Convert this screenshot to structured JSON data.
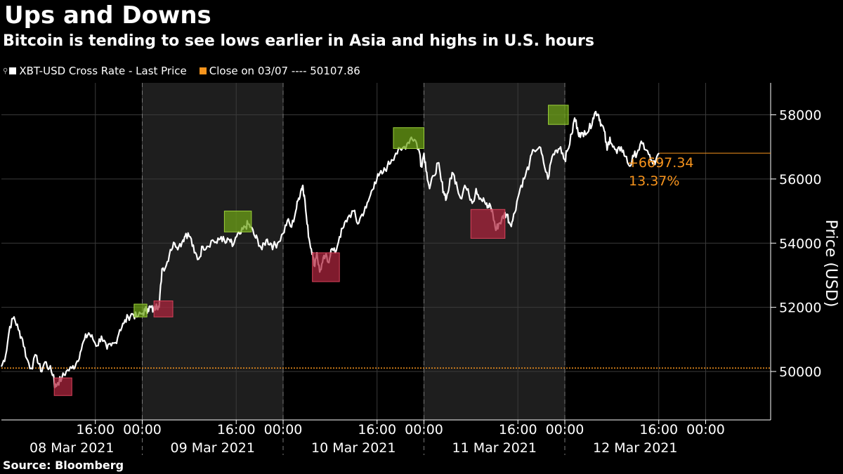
{
  "header": {
    "title": "Ups and Downs",
    "subtitle": "Bitcoin is tending to see lows earlier in Asia and highs in U.S. hours"
  },
  "legend": [
    {
      "label": "XBT-USD Cross Rate - Last Price",
      "color": "#ffffff"
    },
    {
      "label": "Close on 03/07 ---- 50107.86",
      "color": "#f7941d"
    }
  ],
  "footer": {
    "source": "Source: Bloomberg"
  },
  "colors": {
    "line": "#ffffff",
    "reference": "#f7941d",
    "shade": "#1e1e1e",
    "grid": "#3a3a3a",
    "low_box": "#b0263e",
    "high_box": "#6fa516"
  },
  "chart_data": {
    "type": "line",
    "title": "Ups and Downs",
    "subtitle": "Bitcoin is tending to see lows earlier in Asia and highs in U.S. hours",
    "ylabel": "Price (USD)",
    "ylim": [
      48800,
      58900
    ],
    "y_ticks": [
      50000,
      52000,
      54000,
      56000,
      58000
    ],
    "y_tick_labels": [
      "50000",
      "52000",
      "54000",
      "56000",
      "58000"
    ],
    "x_range_days": [
      8.0,
      13.0
    ],
    "x_day_labels": [
      "08 Mar 2021",
      "09 Mar 2021",
      "10 Mar 2021",
      "11 Mar 2021",
      "12 Mar 2021"
    ],
    "x_time_ticks": [
      {
        "day": 8.667,
        "label": "16:00"
      },
      {
        "day": 9.0,
        "label": "00:00"
      },
      {
        "day": 9.667,
        "label": "16:00"
      },
      {
        "day": 10.0,
        "label": "00:00"
      },
      {
        "day": 10.667,
        "label": "16:00"
      },
      {
        "day": 11.0,
        "label": "00:00"
      },
      {
        "day": 11.667,
        "label": "16:00"
      },
      {
        "day": 12.0,
        "label": "00:00"
      },
      {
        "day": 12.667,
        "label": "16:00"
      },
      {
        "day": 13.0,
        "label": "00:00"
      }
    ],
    "shaded_days": [
      9,
      11
    ],
    "reference_line": {
      "label": "Close on 03/07",
      "value": 50107.86
    },
    "last_change": {
      "absolute": "+6697.34",
      "percent": "13.37%",
      "value": 56805.2
    },
    "series": [
      {
        "name": "XBT-USD Cross Rate - Last Price",
        "points": [
          [
            8.0,
            50150
          ],
          [
            8.03,
            50500
          ],
          [
            8.06,
            51400
          ],
          [
            8.09,
            51700
          ],
          [
            8.12,
            51300
          ],
          [
            8.15,
            51000
          ],
          [
            8.18,
            50400
          ],
          [
            8.21,
            50100
          ],
          [
            8.25,
            50500
          ],
          [
            8.28,
            50000
          ],
          [
            8.31,
            50300
          ],
          [
            8.34,
            50100
          ],
          [
            8.37,
            49900
          ],
          [
            8.38,
            49500
          ],
          [
            8.4,
            49650
          ],
          [
            8.43,
            49800
          ],
          [
            8.46,
            50000
          ],
          [
            8.5,
            50100
          ],
          [
            8.53,
            50250
          ],
          [
            8.56,
            50600
          ],
          [
            8.59,
            51000
          ],
          [
            8.62,
            51200
          ],
          [
            8.65,
            51000
          ],
          [
            8.68,
            50800
          ],
          [
            8.71,
            51100
          ],
          [
            8.75,
            50700
          ],
          [
            8.78,
            50800
          ],
          [
            8.81,
            50900
          ],
          [
            8.84,
            51300
          ],
          [
            8.87,
            51500
          ],
          [
            8.9,
            51700
          ],
          [
            8.93,
            51800
          ],
          [
            8.96,
            51700
          ],
          [
            9.0,
            51800
          ],
          [
            9.02,
            51900
          ],
          [
            9.04,
            51950
          ],
          [
            9.06,
            52000
          ],
          [
            9.08,
            51900
          ],
          [
            9.1,
            52100
          ],
          [
            9.12,
            52000
          ],
          [
            9.14,
            53200
          ],
          [
            9.17,
            53300
          ],
          [
            9.2,
            53800
          ],
          [
            9.23,
            54000
          ],
          [
            9.26,
            53900
          ],
          [
            9.29,
            54100
          ],
          [
            9.31,
            54300
          ],
          [
            9.34,
            54200
          ],
          [
            9.37,
            53700
          ],
          [
            9.4,
            53500
          ],
          [
            9.43,
            53900
          ],
          [
            9.46,
            53900
          ],
          [
            9.5,
            54100
          ],
          [
            9.53,
            54000
          ],
          [
            9.56,
            54200
          ],
          [
            9.59,
            54000
          ],
          [
            9.62,
            54100
          ],
          [
            9.64,
            53900
          ],
          [
            9.67,
            54200
          ],
          [
            9.7,
            54300
          ],
          [
            9.73,
            54500
          ],
          [
            9.75,
            54600
          ],
          [
            9.77,
            54500
          ],
          [
            9.8,
            54200
          ],
          [
            9.82,
            54100
          ],
          [
            9.85,
            53800
          ],
          [
            9.88,
            54100
          ],
          [
            9.91,
            54000
          ],
          [
            9.93,
            53900
          ],
          [
            9.96,
            54000
          ],
          [
            10.0,
            54300
          ],
          [
            10.03,
            54700
          ],
          [
            10.06,
            54500
          ],
          [
            10.09,
            55000
          ],
          [
            10.11,
            55400
          ],
          [
            10.13,
            55700
          ],
          [
            10.14,
            55800
          ],
          [
            10.15,
            55500
          ],
          [
            10.17,
            54600
          ],
          [
            10.19,
            54000
          ],
          [
            10.21,
            53700
          ],
          [
            10.22,
            53300
          ],
          [
            10.24,
            53700
          ],
          [
            10.26,
            53100
          ],
          [
            10.28,
            53400
          ],
          [
            10.3,
            53600
          ],
          [
            10.32,
            53400
          ],
          [
            10.34,
            53800
          ],
          [
            10.37,
            53700
          ],
          [
            10.4,
            54200
          ],
          [
            10.43,
            54500
          ],
          [
            10.46,
            54800
          ],
          [
            10.5,
            55000
          ],
          [
            10.53,
            54600
          ],
          [
            10.56,
            54900
          ],
          [
            10.59,
            55100
          ],
          [
            10.62,
            55500
          ],
          [
            10.65,
            55900
          ],
          [
            10.68,
            56100
          ],
          [
            10.71,
            56200
          ],
          [
            10.74,
            56400
          ],
          [
            10.77,
            56600
          ],
          [
            10.8,
            56800
          ],
          [
            10.84,
            56900
          ],
          [
            10.88,
            57100
          ],
          [
            10.91,
            57300
          ],
          [
            10.94,
            57200
          ],
          [
            10.97,
            56800
          ],
          [
            10.98,
            56400
          ],
          [
            11.0,
            56800
          ],
          [
            11.02,
            56200
          ],
          [
            11.04,
            55700
          ],
          [
            11.07,
            56100
          ],
          [
            11.1,
            56500
          ],
          [
            11.12,
            56000
          ],
          [
            11.14,
            55600
          ],
          [
            11.16,
            55400
          ],
          [
            11.18,
            55800
          ],
          [
            11.2,
            56200
          ],
          [
            11.23,
            55900
          ],
          [
            11.26,
            55400
          ],
          [
            11.29,
            55800
          ],
          [
            11.32,
            55500
          ],
          [
            11.35,
            55300
          ],
          [
            11.37,
            55700
          ],
          [
            11.4,
            55400
          ],
          [
            11.43,
            55300
          ],
          [
            11.45,
            55100
          ],
          [
            11.47,
            55200
          ],
          [
            11.49,
            54900
          ],
          [
            11.51,
            54400
          ],
          [
            11.53,
            54600
          ],
          [
            11.55,
            54700
          ],
          [
            11.57,
            54900
          ],
          [
            11.59,
            54900
          ],
          [
            11.61,
            54600
          ],
          [
            11.63,
            54700
          ],
          [
            11.66,
            55300
          ],
          [
            11.69,
            55800
          ],
          [
            11.72,
            56100
          ],
          [
            11.75,
            56500
          ],
          [
            11.78,
            56900
          ],
          [
            11.82,
            57000
          ],
          [
            11.85,
            56500
          ],
          [
            11.88,
            56000
          ],
          [
            11.91,
            56700
          ],
          [
            11.94,
            56900
          ],
          [
            11.97,
            57000
          ],
          [
            12.0,
            56600
          ],
          [
            12.02,
            56900
          ],
          [
            12.05,
            57400
          ],
          [
            12.07,
            57900
          ],
          [
            12.09,
            57600
          ],
          [
            12.11,
            57300
          ],
          [
            12.14,
            57500
          ],
          [
            12.17,
            57500
          ],
          [
            12.2,
            57900
          ],
          [
            12.22,
            58100
          ],
          [
            12.24,
            58000
          ],
          [
            12.26,
            57700
          ],
          [
            12.28,
            57500
          ],
          [
            12.3,
            56900
          ],
          [
            12.32,
            57300
          ],
          [
            12.34,
            57000
          ],
          [
            12.37,
            56800
          ],
          [
            12.4,
            57000
          ],
          [
            12.43,
            56700
          ],
          [
            12.46,
            56400
          ],
          [
            12.49,
            56700
          ],
          [
            12.52,
            56900
          ],
          [
            12.55,
            57100
          ],
          [
            12.58,
            56900
          ],
          [
            12.61,
            56600
          ],
          [
            12.64,
            56450
          ],
          [
            12.67,
            56800
          ]
        ]
      }
    ],
    "low_boxes": [
      {
        "day0": 8.375,
        "day1": 8.5,
        "y0": 49250,
        "y1": 49800
      },
      {
        "day0": 9.083,
        "day1": 9.217,
        "y0": 51700,
        "y1": 52200
      },
      {
        "day0": 10.208,
        "day1": 10.4,
        "y0": 52800,
        "y1": 53700
      },
      {
        "day0": 11.333,
        "day1": 11.575,
        "y0": 54150,
        "y1": 55050
      }
    ],
    "high_boxes": [
      {
        "day0": 8.942,
        "day1": 9.033,
        "y0": 51700,
        "y1": 52100
      },
      {
        "day0": 9.583,
        "day1": 9.775,
        "y0": 54350,
        "y1": 55000
      },
      {
        "day0": 10.783,
        "day1": 11.0,
        "y0": 56950,
        "y1": 57600
      },
      {
        "day0": 11.883,
        "day1": 12.025,
        "y0": 57700,
        "y1": 58300
      }
    ]
  }
}
